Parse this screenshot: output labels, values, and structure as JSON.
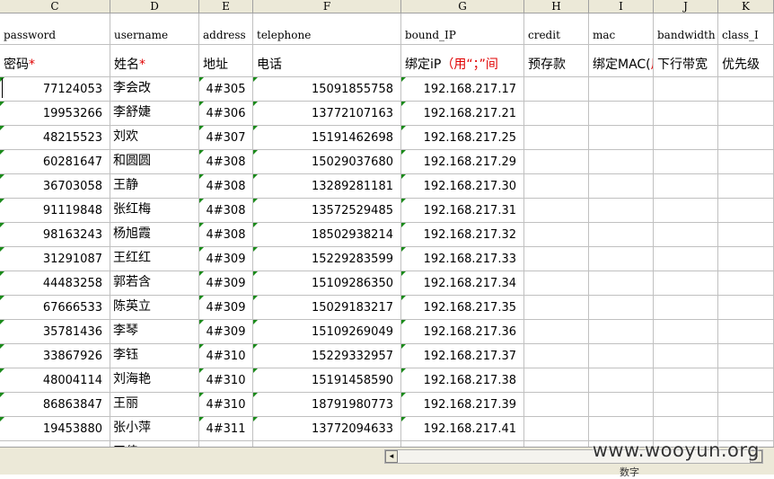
{
  "columns": [
    "C",
    "D",
    "E",
    "F",
    "G",
    "H",
    "I",
    "J",
    "K"
  ],
  "header_en": [
    "password",
    "username",
    "address",
    "telephone",
    "bound_IP",
    "credit",
    "mac",
    "bandwidth",
    "class_I"
  ],
  "header_cn": [
    {
      "text": "密码",
      "required": "*"
    },
    {
      "text": "姓名",
      "required": "*"
    },
    {
      "text": "地址",
      "required": ""
    },
    {
      "text": "电话",
      "required": ""
    },
    {
      "text": "绑定iP",
      "note": "（用“；”间"
    },
    {
      "text": "预存款",
      "required": ""
    },
    {
      "text": "绑定MAC(",
      "note": "用"
    },
    {
      "text": "下行带宽",
      "required": ""
    },
    {
      "text": "优先级",
      "required": ""
    }
  ],
  "rows": [
    {
      "password": "77124053",
      "username": "李会改",
      "address": "4#305",
      "telephone": "15091855758",
      "ip": "192.168.217.17"
    },
    {
      "password": "19953266",
      "username": "李舒婕",
      "address": "4#306",
      "telephone": "13772107163",
      "ip": "192.168.217.21"
    },
    {
      "password": "48215523",
      "username": "刘欢",
      "address": "4#307",
      "telephone": "15191462698",
      "ip": "192.168.217.25"
    },
    {
      "password": "60281647",
      "username": "和圆圆",
      "address": "4#308",
      "telephone": "15029037680",
      "ip": "192.168.217.29"
    },
    {
      "password": "36703058",
      "username": "王静",
      "address": "4#308",
      "telephone": "13289281181",
      "ip": "192.168.217.30"
    },
    {
      "password": "91119848",
      "username": "张红梅",
      "address": "4#308",
      "telephone": "13572529485",
      "ip": "192.168.217.31"
    },
    {
      "password": "98163243",
      "username": "杨旭霞",
      "address": "4#308",
      "telephone": "18502938214",
      "ip": "192.168.217.32"
    },
    {
      "password": "31291087",
      "username": "王红红",
      "address": "4#309",
      "telephone": "15229283599",
      "ip": "192.168.217.33"
    },
    {
      "password": "44483258",
      "username": "郭若含",
      "address": "4#309",
      "telephone": "15109286350",
      "ip": "192.168.217.34"
    },
    {
      "password": "67666533",
      "username": "陈英立",
      "address": "4#309",
      "telephone": "15029183217",
      "ip": "192.168.217.35"
    },
    {
      "password": "35781436",
      "username": "李琴",
      "address": "4#309",
      "telephone": "15109269049",
      "ip": "192.168.217.36"
    },
    {
      "password": "33867926",
      "username": "李钰",
      "address": "4#310",
      "telephone": "15229332957",
      "ip": "192.168.217.37"
    },
    {
      "password": "48004114",
      "username": "刘海艳",
      "address": "4#310",
      "telephone": "15191458590",
      "ip": "192.168.217.38"
    },
    {
      "password": "86863847",
      "username": "王丽",
      "address": "4#310",
      "telephone": "18791980773",
      "ip": "192.168.217.39"
    },
    {
      "password": "19453880",
      "username": "张小萍",
      "address": "4#311",
      "telephone": "13772094633",
      "ip": "192.168.217.41"
    },
    {
      "password": "",
      "username": "王佳",
      "address": "",
      "telephone": "",
      "ip": ""
    }
  ],
  "status": {
    "mode": "数字"
  },
  "watermark": "www.wooyun.org",
  "colors": {
    "required_red": "#e00000",
    "error_triangle": "#1a8a1a",
    "chrome": "#ece9d8",
    "gridline": "#c0c0c0"
  },
  "scrollbar": {
    "left_arrow": "◂",
    "right_arrow": "▸"
  }
}
